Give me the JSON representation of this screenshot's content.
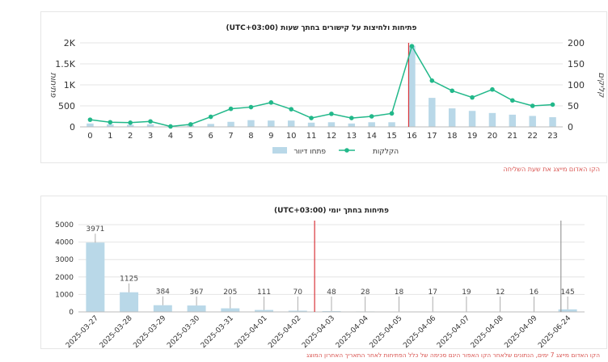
{
  "colors": {
    "bar": "#b9d8e8",
    "bar_edge": "#8fbcd4",
    "line": "#22b88a",
    "marker_red": "#d9343a",
    "marker_gray": "#9a9a9a",
    "grid": "#e4e4e4",
    "axis_text": "#333333",
    "note_red": "#d9534f"
  },
  "notes": {
    "chart1": "הקו האדום מייצג את שעת השליחה",
    "chart2": "הקו האדום מייצג 7 ימים, הנתונים שלאחר הקו האפור הינם סכימה של כלל הפתיחות לאחר התאריך האחרון המוצג"
  },
  "chart_data": [
    {
      "type": "bar+line",
      "title": "פתיחות ולחיצות על קישורים בחתך שעות (UTC+03:00)",
      "ylabel": "פתיחות",
      "y2label": "קליקים",
      "categories": [
        "0",
        "1",
        "2",
        "3",
        "4",
        "5",
        "6",
        "7",
        "8",
        "9",
        "10",
        "11",
        "12",
        "13",
        "14",
        "15",
        "16",
        "17",
        "18",
        "19",
        "20",
        "21",
        "22",
        "23"
      ],
      "ylim": [
        0,
        2000
      ],
      "y_ticks": [
        "0",
        "500",
        "1K",
        "1.5K",
        "2K"
      ],
      "y2lim": [
        0,
        200
      ],
      "y2_ticks": [
        "0",
        "50",
        "100",
        "150",
        "200"
      ],
      "grid": true,
      "legend_position": "bottom",
      "send_marker_category": "16",
      "series": [
        {
          "name": "פתחו דיוור",
          "type": "bar",
          "axis": "left",
          "values": [
            80,
            60,
            50,
            60,
            20,
            40,
            70,
            120,
            160,
            150,
            150,
            100,
            110,
            80,
            110,
            110,
            1930,
            690,
            440,
            380,
            330,
            290,
            260,
            230
          ]
        },
        {
          "name": "הקלקות",
          "type": "line",
          "axis": "right",
          "values": [
            17,
            11,
            10,
            13,
            1,
            6,
            24,
            43,
            47,
            58,
            42,
            21,
            31,
            21,
            25,
            32,
            192,
            110,
            86,
            70,
            89,
            63,
            50,
            53
          ]
        }
      ]
    },
    {
      "type": "bar",
      "title": "פתיחות בחתך יומי (UTC+03:00)",
      "categories": [
        "2025-03-27",
        "2025-03-28",
        "2025-03-29",
        "2025-03-30",
        "2025-03-31",
        "2025-04-01",
        "2025-04-02",
        "2025-04-03",
        "2025-04-04",
        "2025-04-05",
        "2025-04-06",
        "2025-04-07",
        "2025-04-08",
        "2025-04-09",
        "2025-06-24"
      ],
      "values": [
        3971,
        1125,
        384,
        367,
        205,
        111,
        70,
        48,
        28,
        18,
        17,
        19,
        12,
        16,
        145
      ],
      "data_labels": [
        "3971",
        "1125",
        "384",
        "367",
        "205",
        "111",
        "70",
        "48",
        "28",
        "18",
        "17",
        "19",
        "12",
        "16",
        "145"
      ],
      "ylim": [
        0,
        5000
      ],
      "y_ticks": [
        "0",
        "1000",
        "2000",
        "3000",
        "4000",
        "5000"
      ],
      "grid": true,
      "red_marker_after": "2025-04-02",
      "gray_marker_at": "2025-06-24"
    }
  ]
}
